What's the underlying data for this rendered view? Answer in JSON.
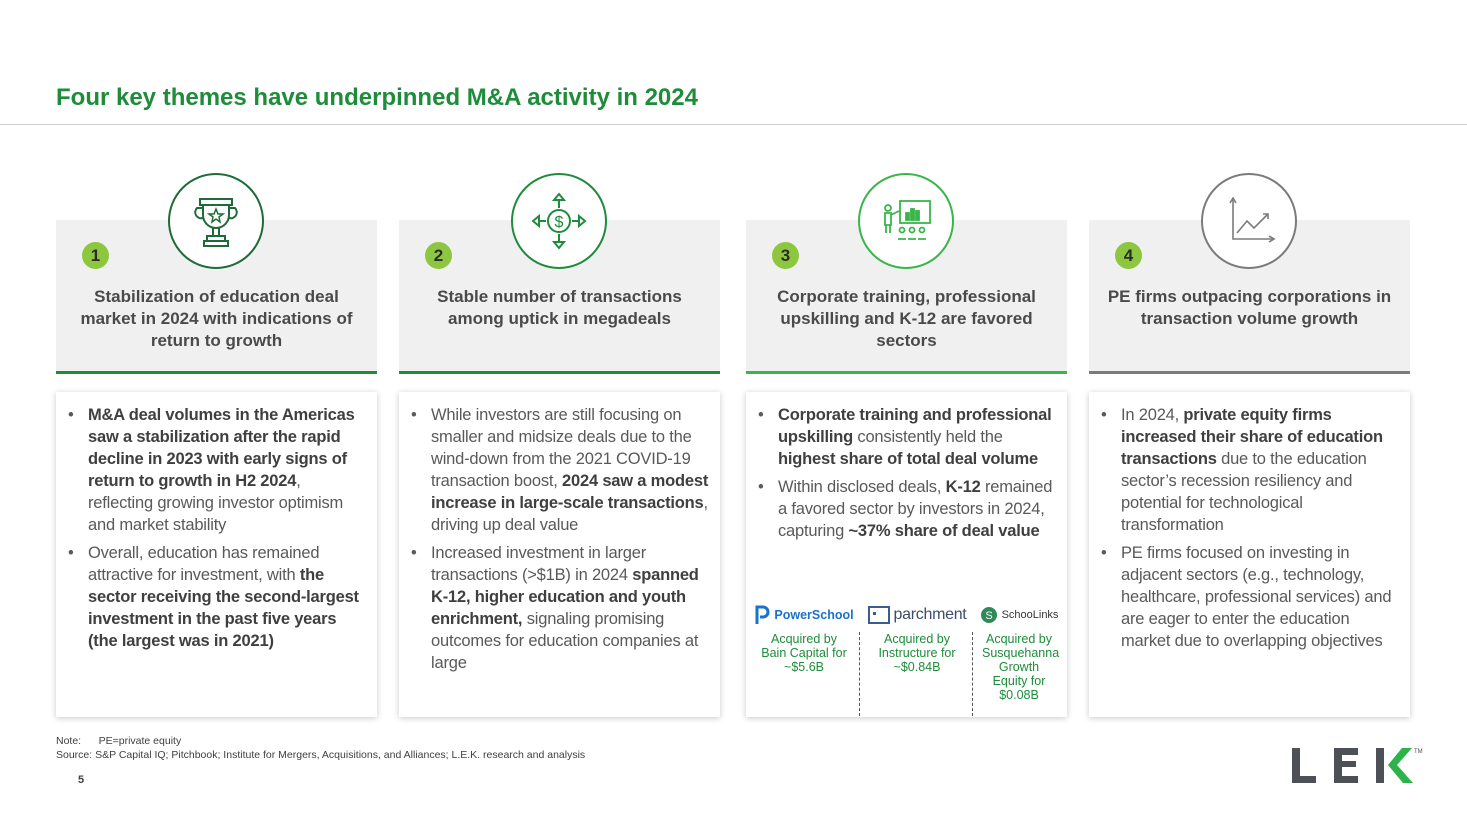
{
  "title": "Four key themes have underpinned M&A activity in 2024",
  "colors": {
    "accent": "#1e8c3a",
    "number_badge": "#8dc63f",
    "gray_line": "#7b7b7b"
  },
  "themes": [
    {
      "number": "1",
      "icon": "trophy-icon",
      "heading": "Stabilization of education deal market in 2024 with indications of return to growth",
      "bullets": [
        [
          {
            "text": "M&A deal volumes in the Americas saw a stabilization after the rapid decline in 2023 with early signs of return to growth in H2 2024",
            "bold": true
          },
          {
            "text": ", reflecting growing investor optimism and market stability",
            "bold": false
          }
        ],
        [
          {
            "text": "Overall, education has remained attractive for investment, with ",
            "bold": false
          },
          {
            "text": "the sector receiving the second-largest investment in the past five years (the largest was in 2021)",
            "bold": true
          }
        ]
      ]
    },
    {
      "number": "2",
      "icon": "dollar-arrows-icon",
      "heading": "Stable number of transactions among uptick in megadeals",
      "bullets": [
        [
          {
            "text": "While investors are still focusing on smaller and midsize deals due to the wind-down from the 2021 COVID-19 transaction boost, ",
            "bold": false
          },
          {
            "text": "2024 saw a modest increase in large-scale transactions",
            "bold": true
          },
          {
            "text": ", driving up deal value",
            "bold": false
          }
        ],
        [
          {
            "text": "Increased investment in larger transactions (>$1B) in 2024 ",
            "bold": false
          },
          {
            "text": "spanned K-12, higher education and youth enrichment,",
            "bold": true
          },
          {
            "text": " signaling promising outcomes for education companies at large",
            "bold": false
          }
        ]
      ]
    },
    {
      "number": "3",
      "icon": "presentation-training-icon",
      "heading": "Corporate training, professional upskilling and K-12 are favored sectors",
      "bullets": [
        [
          {
            "text": "Corporate training and professional upskilling",
            "bold": true
          },
          {
            "text": " consistently held the ",
            "bold": false
          },
          {
            "text": "highest share of total deal volume",
            "bold": true
          }
        ],
        [
          {
            "text": "Within disclosed deals, ",
            "bold": false
          },
          {
            "text": "K-12",
            "bold": true
          },
          {
            "text": " remained a favored sector by investors in 2024, capturing ",
            "bold": false
          },
          {
            "text": "~37% share of deal value",
            "bold": true
          }
        ]
      ],
      "deals": [
        {
          "logo": "PowerSchool",
          "logo_icon": "powerschool-logo-icon",
          "acquired": "Acquired by Bain Capital for ~$5.6B"
        },
        {
          "logo": "parchment",
          "logo_icon": "parchment-logo-icon",
          "acquired": "Acquired by Instructure for ~$0.84B"
        },
        {
          "logo": "SchooLinks",
          "logo_icon": "schoolinks-logo-icon",
          "acquired": "Acquired by Susquehanna Growth Equity for $0.08B"
        }
      ]
    },
    {
      "number": "4",
      "icon": "growth-chart-icon",
      "heading": "PE firms outpacing corporations in transaction volume growth",
      "bullets": [
        [
          {
            "text": "In 2024, ",
            "bold": false
          },
          {
            "text": "private equity firms increased their share of education transactions",
            "bold": true
          },
          {
            "text": " due to the education sector’s recession resiliency and potential for technological transformation",
            "bold": false
          }
        ],
        [
          {
            "text": "PE firms focused on investing in adjacent sectors (e.g., technology, healthcare, professional services) and are eager to enter the education market due to overlapping objectives",
            "bold": false
          }
        ]
      ]
    }
  ],
  "footer": {
    "note": "Note:      PE=private equity",
    "source": "Source: S&P Capital IQ; Pitchbook; Institute for Mergers, Acquisitions, and Alliances; L.E.K. research and analysis",
    "page_number": "5",
    "logo_text": "LEK",
    "logo_tm": "TM"
  }
}
